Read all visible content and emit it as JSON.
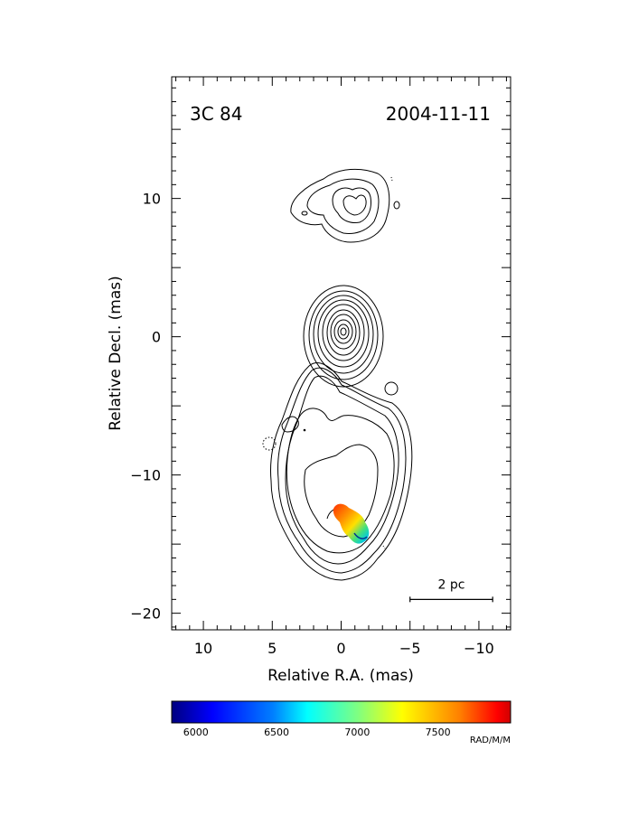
{
  "chart_data": {
    "type": "contour",
    "title_left": "3C 84",
    "title_right": "2004-11-11",
    "xlabel": "Relative R.A. (mas)",
    "ylabel": "Relative Decl. (mas)",
    "xlim": [
      12.3,
      -12.3
    ],
    "ylim": [
      -21.2,
      18.8
    ],
    "x_ticks": [
      10,
      5,
      0,
      -5,
      -10
    ],
    "x_tick_labels": [
      "10",
      "5",
      "0",
      "−5",
      "−10"
    ],
    "y_ticks": [
      10,
      0,
      -10,
      -20
    ],
    "y_tick_labels": [
      "10",
      "0",
      "−10",
      "−20"
    ],
    "scale_bar": {
      "label": "2 pc",
      "x_start": -5,
      "x_end": -11,
      "y": -19
    },
    "components": [
      {
        "name": "north",
        "center": [
          0,
          9.4
        ]
      },
      {
        "name": "core",
        "center": [
          0,
          0
        ]
      },
      {
        "name": "south",
        "center": [
          0,
          -11
        ]
      }
    ],
    "rotation_measure_region": {
      "x_range": [
        0,
        1.8
      ],
      "y_range": [
        -15,
        -12.3
      ],
      "rm_min": 5900,
      "rm_max": 7900
    },
    "colorbar": {
      "unit": "RAD/M/M",
      "range": [
        5850,
        7950
      ],
      "ticks": [
        6000,
        6500,
        7000,
        7500
      ],
      "tick_labels": [
        "6000",
        "6500",
        "7000",
        "7500"
      ],
      "colors": [
        "#00007f",
        "#0000ff",
        "#0080ff",
        "#00ffff",
        "#80ff80",
        "#ffff00",
        "#ff8000",
        "#ff0000",
        "#7f0000"
      ]
    }
  }
}
